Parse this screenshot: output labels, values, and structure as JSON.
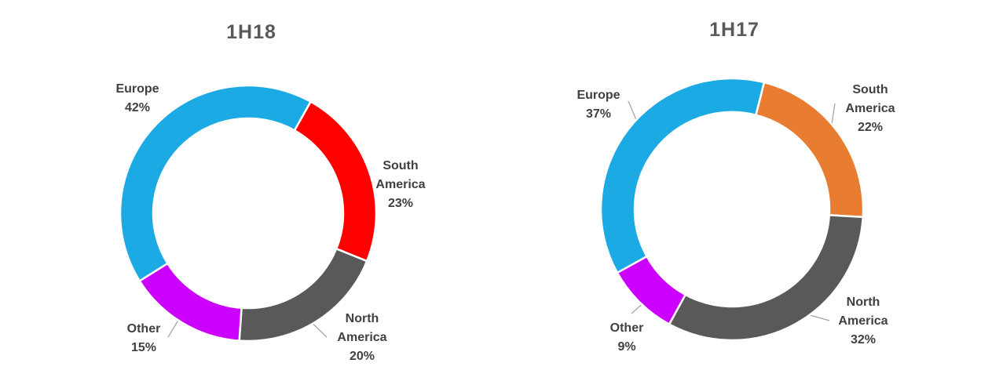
{
  "style": {
    "background": "#FFFFFF",
    "title_color": "#595959",
    "label_color": "#404040",
    "leader_line_color": "#A6A6A6",
    "slice_border_color": "#FFFFFF"
  },
  "chart_data": [
    {
      "type": "donut",
      "title": "1H18",
      "categories": [
        "Europe",
        "South America",
        "North America",
        "Other"
      ],
      "values": [
        42,
        23,
        20,
        15
      ],
      "value_labels": [
        "42%",
        "23%",
        "20%",
        "15%"
      ],
      "colors": [
        "#1CAAE4",
        "#FF0000",
        "#595959",
        "#CC00FF"
      ],
      "start_angle_deg": 238,
      "direction": "clockwise",
      "inner_radius_ratio": 0.74,
      "labels_position": "outside",
      "legend": "none"
    },
    {
      "type": "donut",
      "title": "1H17",
      "categories": [
        "Europe",
        "South America",
        "North America",
        "Other"
      ],
      "values": [
        37,
        22,
        32,
        9
      ],
      "value_labels": [
        "37%",
        "22%",
        "32%",
        "9%"
      ],
      "colors": [
        "#1CAAE4",
        "#E87D31",
        "#595959",
        "#CC00FF"
      ],
      "start_angle_deg": 241,
      "direction": "clockwise",
      "inner_radius_ratio": 0.74,
      "labels_position": "outside",
      "legend": "none"
    }
  ]
}
